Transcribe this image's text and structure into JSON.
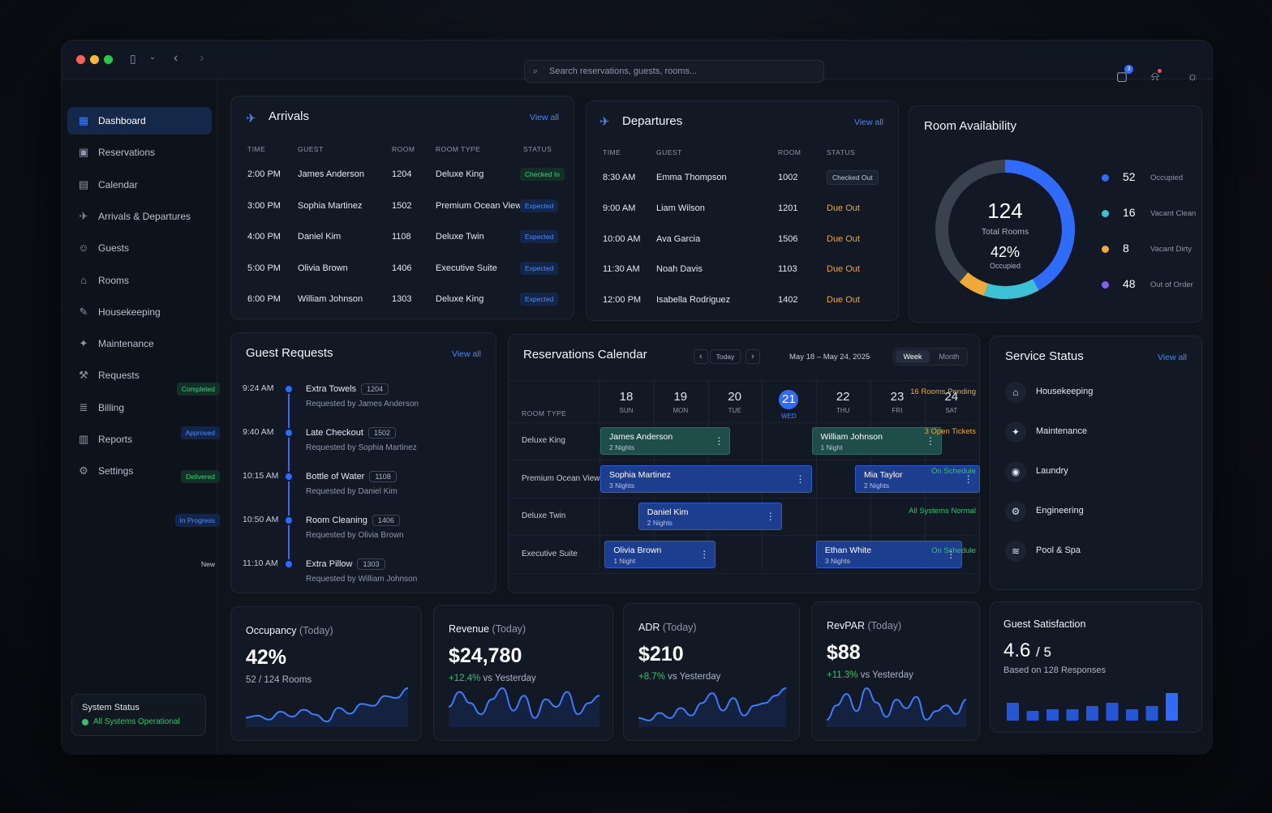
{
  "search": {
    "placeholder": "Search reservations, guests, rooms..."
  },
  "header": {
    "messages_count": "3"
  },
  "sidebar": {
    "items": [
      {
        "label": "Dashboard",
        "icon": "grid-icon"
      },
      {
        "label": "Reservations",
        "icon": "calendar-check-icon"
      },
      {
        "label": "Calendar",
        "icon": "calendar-icon"
      },
      {
        "label": "Arrivals & Departures",
        "icon": "plane-icon"
      },
      {
        "label": "Guests",
        "icon": "users-icon"
      },
      {
        "label": "Rooms",
        "icon": "bed-icon"
      },
      {
        "label": "Housekeeping",
        "icon": "broom-icon"
      },
      {
        "label": "Maintenance",
        "icon": "wrench-icon"
      },
      {
        "label": "Requests",
        "icon": "tool-icon"
      },
      {
        "label": "Billing",
        "icon": "document-icon"
      },
      {
        "label": "Reports",
        "icon": "bar-chart-icon"
      },
      {
        "label": "Settings",
        "icon": "gear-icon"
      }
    ],
    "system_status": {
      "title": "System Status",
      "value": "All Systems Operational"
    }
  },
  "arrivals": {
    "title": "Arrivals",
    "view_all": "View all",
    "headers": [
      "TIME",
      "GUEST",
      "ROOM",
      "ROOM TYPE",
      "STATUS"
    ],
    "rows": [
      {
        "time": "2:00 PM",
        "guest": "James Anderson",
        "room": "1204",
        "type": "Deluxe King",
        "status": "Checked In"
      },
      {
        "time": "3:00 PM",
        "guest": "Sophia Martinez",
        "room": "1502",
        "type": "Premium Ocean View",
        "status": "Expected"
      },
      {
        "time": "4:00 PM",
        "guest": "Daniel Kim",
        "room": "1108",
        "type": "Deluxe Twin",
        "status": "Expected"
      },
      {
        "time": "5:00 PM",
        "guest": "Olivia Brown",
        "room": "1406",
        "type": "Executive Suite",
        "status": "Expected"
      },
      {
        "time": "6:00 PM",
        "guest": "William Johnson",
        "room": "1303",
        "type": "Deluxe King",
        "status": "Expected"
      }
    ]
  },
  "departures": {
    "title": "Departures",
    "view_all": "View all",
    "headers": [
      "TIME",
      "GUEST",
      "ROOM",
      "STATUS"
    ],
    "rows": [
      {
        "time": "8:30 AM",
        "guest": "Emma Thompson",
        "room": "1002",
        "status": "Checked Out"
      },
      {
        "time": "9:00 AM",
        "guest": "Liam Wilson",
        "room": "1201",
        "status": "Due Out"
      },
      {
        "time": "10:00 AM",
        "guest": "Ava Garcia",
        "room": "1506",
        "status": "Due Out"
      },
      {
        "time": "11:30 AM",
        "guest": "Noah Davis",
        "room": "1103",
        "status": "Due Out"
      },
      {
        "time": "12:00 PM",
        "guest": "Isabella Rodriguez",
        "room": "1402",
        "status": "Due Out"
      }
    ]
  },
  "availability": {
    "title": "Room Availability",
    "total": "124",
    "total_label": "Total Rooms",
    "pct": "42%",
    "pct_label": "Occupied",
    "legend": [
      {
        "value": "52",
        "label": "Occupied",
        "color": "#2f6bff"
      },
      {
        "value": "16",
        "label": "Vacant Clean",
        "color": "#3cc2d6"
      },
      {
        "value": "8",
        "label": "Vacant Dirty",
        "color": "#f0a935"
      },
      {
        "value": "48",
        "label": "Out of Order",
        "color": "#8a5cf6"
      }
    ]
  },
  "requests": {
    "title": "Guest Requests",
    "view_all": "View all",
    "items": [
      {
        "time": "9:24 AM",
        "title": "Extra Towels",
        "room": "1204",
        "by": "Requested by James Anderson",
        "status": "Completed",
        "kind": "green"
      },
      {
        "time": "9:40 AM",
        "title": "Late Checkout",
        "room": "1502",
        "by": "Requested by Sophia Martinez",
        "status": "Approved",
        "kind": "blue"
      },
      {
        "time": "10:15 AM",
        "title": "Bottle of Water",
        "room": "1108",
        "by": "Requested by Daniel Kim",
        "status": "Delivered",
        "kind": "green"
      },
      {
        "time": "10:50 AM",
        "title": "Room Cleaning",
        "room": "1406",
        "by": "Requested by Olivia Brown",
        "status": "In Progress",
        "kind": "blue"
      },
      {
        "time": "11:10 AM",
        "title": "Extra Pillow",
        "room": "1303",
        "by": "Requested by William Johnson",
        "status": "New",
        "kind": "gray"
      }
    ]
  },
  "calendar": {
    "title": "Reservations Calendar",
    "today": "Today",
    "range": "May 18 – May 24, 2025",
    "week": "Week",
    "month": "Month",
    "room_type_header": "ROOM TYPE",
    "days": [
      {
        "n": "18",
        "w": "SUN"
      },
      {
        "n": "19",
        "w": "MON"
      },
      {
        "n": "20",
        "w": "TUE"
      },
      {
        "n": "21",
        "w": "WED"
      },
      {
        "n": "22",
        "w": "THU"
      },
      {
        "n": "23",
        "w": "FRI"
      },
      {
        "n": "24",
        "w": "SAT"
      }
    ],
    "rows": [
      "Deluxe King",
      "Premium Ocean View",
      "Deluxe Twin",
      "Executive Suite"
    ],
    "events": [
      {
        "name": "James Anderson",
        "nights": "2 Nights"
      },
      {
        "name": "William Johnson",
        "nights": "1 Night"
      },
      {
        "name": "Sophia Martinez",
        "nights": "3 Nights"
      },
      {
        "name": "Mia Taylor",
        "nights": "2 Nights"
      },
      {
        "name": "Daniel Kim",
        "nights": "2 Nights"
      },
      {
        "name": "Olivia Brown",
        "nights": "1 Night"
      },
      {
        "name": "Ethan White",
        "nights": "3 Nights"
      }
    ]
  },
  "service": {
    "title": "Service Status",
    "view_all": "View all",
    "items": [
      {
        "name": "Housekeeping",
        "status": "16 Rooms Pending",
        "color": "#f2a531"
      },
      {
        "name": "Maintenance",
        "status": "3 Open Tickets",
        "color": "#f2a531"
      },
      {
        "name": "Laundry",
        "status": "On Schedule",
        "color": "#35c26f"
      },
      {
        "name": "Engineering",
        "status": "All Systems Normal",
        "color": "#35c26f"
      },
      {
        "name": "Pool & Spa",
        "status": "On Schedule",
        "color": "#35c26f"
      }
    ]
  },
  "kpis": [
    {
      "title": "Occupancy",
      "sub": "(Today)",
      "value": "42%",
      "detail": "52 / 124 Rooms",
      "delta": ""
    },
    {
      "title": "Revenue",
      "sub": "(Today)",
      "value": "$24,780",
      "detail": "vs Yesterday",
      "delta": "+12.4%"
    },
    {
      "title": "ADR",
      "sub": "(Today)",
      "value": "$210",
      "detail": "vs Yesterday",
      "delta": "+8.7%"
    },
    {
      "title": "RevPAR",
      "sub": "(Today)",
      "value": "$88",
      "detail": "vs Yesterday",
      "delta": "+11.3%"
    }
  ],
  "satisfaction": {
    "title": "Guest Satisfaction",
    "value": "4.6",
    "out_of": "/ 5",
    "detail": "Based on 128 Responses"
  }
}
